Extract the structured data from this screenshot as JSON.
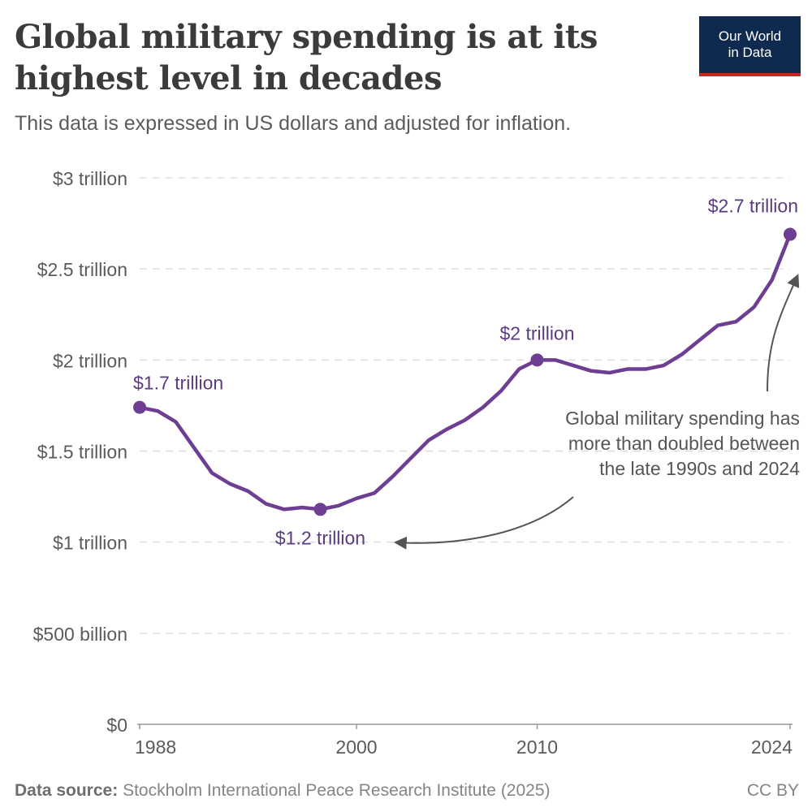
{
  "header": {
    "title": "Global military spending is at its highest level in decades",
    "subtitle": "This data is expressed in US dollars and adjusted for inflation.",
    "logo_line1": "Our World",
    "logo_line2": "in Data"
  },
  "footer": {
    "source_label": "Data source:",
    "source_text": "Stockholm International Peace Research Institute (2025)",
    "license": "CC BY"
  },
  "colors": {
    "line": "#6d3e91",
    "label": "#5b3b80",
    "grid": "#dddddd",
    "axis_text": "#5b5b5b"
  },
  "chart_data": {
    "type": "line",
    "title": "Global military spending is at its highest level in decades",
    "xlabel": "",
    "ylabel": "",
    "xlim": [
      1988,
      2024
    ],
    "ylim": [
      0,
      3
    ],
    "grid": true,
    "x_ticks": [
      1988,
      2000,
      2010,
      2024
    ],
    "y_ticks": [
      {
        "value": 0,
        "label": "$0"
      },
      {
        "value": 0.5,
        "label": "$500 billion"
      },
      {
        "value": 1,
        "label": "$1 trillion"
      },
      {
        "value": 1.5,
        "label": "$1.5 trillion"
      },
      {
        "value": 2,
        "label": "$2 trillion"
      },
      {
        "value": 2.5,
        "label": "$2.5 trillion"
      },
      {
        "value": 3,
        "label": "$3 trillion"
      }
    ],
    "series": [
      {
        "name": "Global military spending (trillion US$)",
        "x": [
          1988,
          1989,
          1990,
          1991,
          1992,
          1993,
          1994,
          1995,
          1996,
          1997,
          1998,
          1999,
          2000,
          2001,
          2002,
          2003,
          2004,
          2005,
          2006,
          2007,
          2008,
          2009,
          2010,
          2011,
          2012,
          2013,
          2014,
          2015,
          2016,
          2017,
          2018,
          2019,
          2020,
          2021,
          2022,
          2023,
          2024
        ],
        "values": [
          1.74,
          1.72,
          1.66,
          1.52,
          1.38,
          1.32,
          1.28,
          1.21,
          1.18,
          1.19,
          1.18,
          1.2,
          1.24,
          1.27,
          1.36,
          1.46,
          1.56,
          1.62,
          1.67,
          1.74,
          1.83,
          1.95,
          2.0,
          2.0,
          1.97,
          1.94,
          1.93,
          1.95,
          1.95,
          1.97,
          2.03,
          2.11,
          2.19,
          2.21,
          2.29,
          2.44,
          2.69
        ]
      }
    ],
    "point_labels": [
      {
        "x": 1988,
        "text": "$1.7 trillion"
      },
      {
        "x": 1998,
        "text": "$1.2 trillion"
      },
      {
        "x": 2010,
        "text": "$2 trillion"
      },
      {
        "x": 2024,
        "text": "$2.7 trillion"
      }
    ],
    "annotation": [
      "Global military spending has",
      "more than doubled between",
      "the late 1990s and 2024"
    ]
  }
}
